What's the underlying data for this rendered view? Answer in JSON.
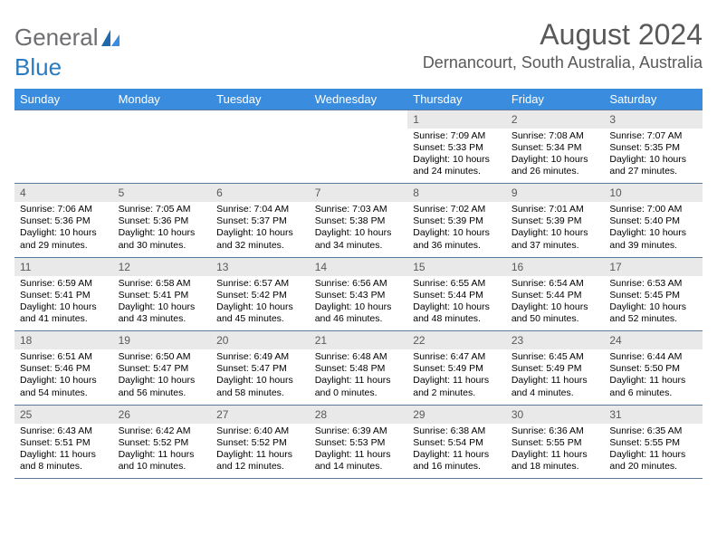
{
  "brand": {
    "general": "General",
    "blue": "Blue"
  },
  "title": {
    "month": "August 2024",
    "location": "Dernancourt, South Australia, Australia"
  },
  "colors": {
    "header_bg": "#3a8dde",
    "header_text": "#ffffff",
    "date_strip_bg": "#e9e9e9",
    "rule": "#5b7a9a",
    "title_text": "#595959",
    "logo_general": "#6d6e71",
    "logo_blue": "#2b7bbf"
  },
  "day_names": [
    "Sunday",
    "Monday",
    "Tuesday",
    "Wednesday",
    "Thursday",
    "Friday",
    "Saturday"
  ],
  "weeks": [
    [
      null,
      null,
      null,
      null,
      {
        "date": "1",
        "sunrise": "7:09 AM",
        "sunset": "5:33 PM",
        "daylight_a": "Daylight: 10 hours",
        "daylight_b": "and 24 minutes."
      },
      {
        "date": "2",
        "sunrise": "7:08 AM",
        "sunset": "5:34 PM",
        "daylight_a": "Daylight: 10 hours",
        "daylight_b": "and 26 minutes."
      },
      {
        "date": "3",
        "sunrise": "7:07 AM",
        "sunset": "5:35 PM",
        "daylight_a": "Daylight: 10 hours",
        "daylight_b": "and 27 minutes."
      }
    ],
    [
      {
        "date": "4",
        "sunrise": "7:06 AM",
        "sunset": "5:36 PM",
        "daylight_a": "Daylight: 10 hours",
        "daylight_b": "and 29 minutes."
      },
      {
        "date": "5",
        "sunrise": "7:05 AM",
        "sunset": "5:36 PM",
        "daylight_a": "Daylight: 10 hours",
        "daylight_b": "and 30 minutes."
      },
      {
        "date": "6",
        "sunrise": "7:04 AM",
        "sunset": "5:37 PM",
        "daylight_a": "Daylight: 10 hours",
        "daylight_b": "and 32 minutes."
      },
      {
        "date": "7",
        "sunrise": "7:03 AM",
        "sunset": "5:38 PM",
        "daylight_a": "Daylight: 10 hours",
        "daylight_b": "and 34 minutes."
      },
      {
        "date": "8",
        "sunrise": "7:02 AM",
        "sunset": "5:39 PM",
        "daylight_a": "Daylight: 10 hours",
        "daylight_b": "and 36 minutes."
      },
      {
        "date": "9",
        "sunrise": "7:01 AM",
        "sunset": "5:39 PM",
        "daylight_a": "Daylight: 10 hours",
        "daylight_b": "and 37 minutes."
      },
      {
        "date": "10",
        "sunrise": "7:00 AM",
        "sunset": "5:40 PM",
        "daylight_a": "Daylight: 10 hours",
        "daylight_b": "and 39 minutes."
      }
    ],
    [
      {
        "date": "11",
        "sunrise": "6:59 AM",
        "sunset": "5:41 PM",
        "daylight_a": "Daylight: 10 hours",
        "daylight_b": "and 41 minutes."
      },
      {
        "date": "12",
        "sunrise": "6:58 AM",
        "sunset": "5:41 PM",
        "daylight_a": "Daylight: 10 hours",
        "daylight_b": "and 43 minutes."
      },
      {
        "date": "13",
        "sunrise": "6:57 AM",
        "sunset": "5:42 PM",
        "daylight_a": "Daylight: 10 hours",
        "daylight_b": "and 45 minutes."
      },
      {
        "date": "14",
        "sunrise": "6:56 AM",
        "sunset": "5:43 PM",
        "daylight_a": "Daylight: 10 hours",
        "daylight_b": "and 46 minutes."
      },
      {
        "date": "15",
        "sunrise": "6:55 AM",
        "sunset": "5:44 PM",
        "daylight_a": "Daylight: 10 hours",
        "daylight_b": "and 48 minutes."
      },
      {
        "date": "16",
        "sunrise": "6:54 AM",
        "sunset": "5:44 PM",
        "daylight_a": "Daylight: 10 hours",
        "daylight_b": "and 50 minutes."
      },
      {
        "date": "17",
        "sunrise": "6:53 AM",
        "sunset": "5:45 PM",
        "daylight_a": "Daylight: 10 hours",
        "daylight_b": "and 52 minutes."
      }
    ],
    [
      {
        "date": "18",
        "sunrise": "6:51 AM",
        "sunset": "5:46 PM",
        "daylight_a": "Daylight: 10 hours",
        "daylight_b": "and 54 minutes."
      },
      {
        "date": "19",
        "sunrise": "6:50 AM",
        "sunset": "5:47 PM",
        "daylight_a": "Daylight: 10 hours",
        "daylight_b": "and 56 minutes."
      },
      {
        "date": "20",
        "sunrise": "6:49 AM",
        "sunset": "5:47 PM",
        "daylight_a": "Daylight: 10 hours",
        "daylight_b": "and 58 minutes."
      },
      {
        "date": "21",
        "sunrise": "6:48 AM",
        "sunset": "5:48 PM",
        "daylight_a": "Daylight: 11 hours",
        "daylight_b": "and 0 minutes."
      },
      {
        "date": "22",
        "sunrise": "6:47 AM",
        "sunset": "5:49 PM",
        "daylight_a": "Daylight: 11 hours",
        "daylight_b": "and 2 minutes."
      },
      {
        "date": "23",
        "sunrise": "6:45 AM",
        "sunset": "5:49 PM",
        "daylight_a": "Daylight: 11 hours",
        "daylight_b": "and 4 minutes."
      },
      {
        "date": "24",
        "sunrise": "6:44 AM",
        "sunset": "5:50 PM",
        "daylight_a": "Daylight: 11 hours",
        "daylight_b": "and 6 minutes."
      }
    ],
    [
      {
        "date": "25",
        "sunrise": "6:43 AM",
        "sunset": "5:51 PM",
        "daylight_a": "Daylight: 11 hours",
        "daylight_b": "and 8 minutes."
      },
      {
        "date": "26",
        "sunrise": "6:42 AM",
        "sunset": "5:52 PM",
        "daylight_a": "Daylight: 11 hours",
        "daylight_b": "and 10 minutes."
      },
      {
        "date": "27",
        "sunrise": "6:40 AM",
        "sunset": "5:52 PM",
        "daylight_a": "Daylight: 11 hours",
        "daylight_b": "and 12 minutes."
      },
      {
        "date": "28",
        "sunrise": "6:39 AM",
        "sunset": "5:53 PM",
        "daylight_a": "Daylight: 11 hours",
        "daylight_b": "and 14 minutes."
      },
      {
        "date": "29",
        "sunrise": "6:38 AM",
        "sunset": "5:54 PM",
        "daylight_a": "Daylight: 11 hours",
        "daylight_b": "and 16 minutes."
      },
      {
        "date": "30",
        "sunrise": "6:36 AM",
        "sunset": "5:55 PM",
        "daylight_a": "Daylight: 11 hours",
        "daylight_b": "and 18 minutes."
      },
      {
        "date": "31",
        "sunrise": "6:35 AM",
        "sunset": "5:55 PM",
        "daylight_a": "Daylight: 11 hours",
        "daylight_b": "and 20 minutes."
      }
    ]
  ],
  "labels": {
    "sunrise": "Sunrise: ",
    "sunset": "Sunset: "
  }
}
